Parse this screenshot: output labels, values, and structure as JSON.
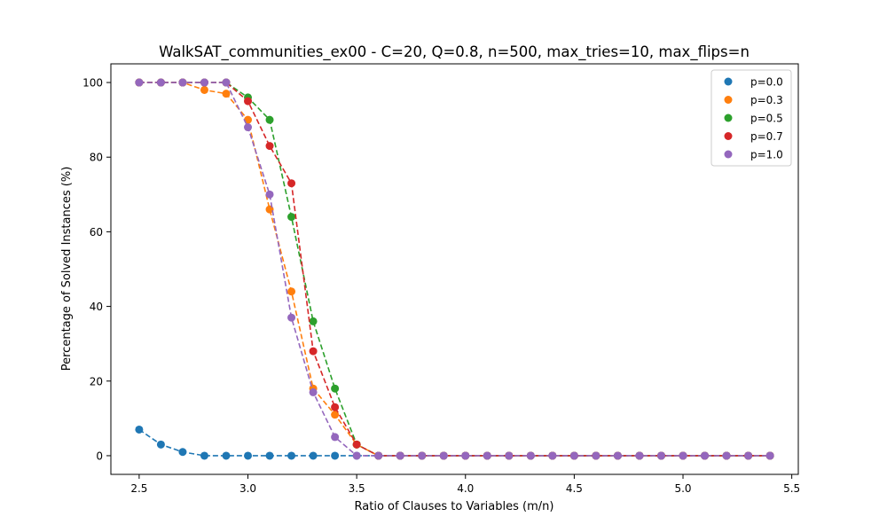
{
  "chart_data": {
    "type": "scatter",
    "title": "WalkSAT_communities_ex00 - C=20, Q=0.8, n=500, max_tries=10, max_flips=n",
    "xlabel": "Ratio of Clauses to Variables (m/n)",
    "ylabel": "Percentage of Solved Instances (%)",
    "xlim": [
      2.37,
      5.53
    ],
    "ylim": [
      -5,
      105
    ],
    "xticks": [
      2.5,
      3.0,
      3.5,
      4.0,
      4.5,
      5.0,
      5.5
    ],
    "xtick_labels": [
      "2.5",
      "3.0",
      "3.5",
      "4.0",
      "4.5",
      "5.0",
      "5.5"
    ],
    "yticks": [
      0,
      20,
      40,
      60,
      80,
      100
    ],
    "ytick_labels": [
      "0",
      "20",
      "40",
      "60",
      "80",
      "100"
    ],
    "grid": false,
    "legend_position": "top-right",
    "line_style": "dashed",
    "x": [
      2.5,
      2.6,
      2.7,
      2.8,
      2.9,
      3.0,
      3.1,
      3.2,
      3.3,
      3.4,
      3.5,
      3.6,
      3.7,
      3.8,
      3.9,
      4.0,
      4.1,
      4.2,
      4.3,
      4.4,
      4.5,
      4.6,
      4.7,
      4.8,
      4.9,
      5.0,
      5.1,
      5.2,
      5.3,
      5.4
    ],
    "series": [
      {
        "name": "p=0.0",
        "color": "#1f77b4",
        "values": [
          7,
          3,
          1,
          0,
          0,
          0,
          0,
          0,
          0,
          0,
          0,
          0,
          0,
          0,
          0,
          0,
          0,
          0,
          0,
          0,
          0,
          0,
          0,
          0,
          0,
          0,
          0,
          0,
          0,
          0
        ]
      },
      {
        "name": "p=0.3",
        "color": "#ff7f0e",
        "values": [
          100,
          100,
          100,
          98,
          97,
          90,
          66,
          44,
          18,
          11,
          3,
          0,
          0,
          0,
          0,
          0,
          0,
          0,
          0,
          0,
          0,
          0,
          0,
          0,
          0,
          0,
          0,
          0,
          0,
          0
        ]
      },
      {
        "name": "p=0.5",
        "color": "#2ca02c",
        "values": [
          100,
          100,
          100,
          100,
          100,
          96,
          90,
          64,
          36,
          18,
          3,
          0,
          0,
          0,
          0,
          0,
          0,
          0,
          0,
          0,
          0,
          0,
          0,
          0,
          0,
          0,
          0,
          0,
          0,
          0
        ]
      },
      {
        "name": "p=0.7",
        "color": "#d62728",
        "values": [
          100,
          100,
          100,
          100,
          100,
          95,
          83,
          73,
          28,
          13,
          3,
          0,
          0,
          0,
          0,
          0,
          0,
          0,
          0,
          0,
          0,
          0,
          0,
          0,
          0,
          0,
          0,
          0,
          0,
          0
        ]
      },
      {
        "name": "p=1.0",
        "color": "#9467bd",
        "values": [
          100,
          100,
          100,
          100,
          100,
          88,
          70,
          37,
          17,
          5,
          0,
          0,
          0,
          0,
          0,
          0,
          0,
          0,
          0,
          0,
          0,
          0,
          0,
          0,
          0,
          0,
          0,
          0,
          0,
          0
        ]
      }
    ]
  }
}
